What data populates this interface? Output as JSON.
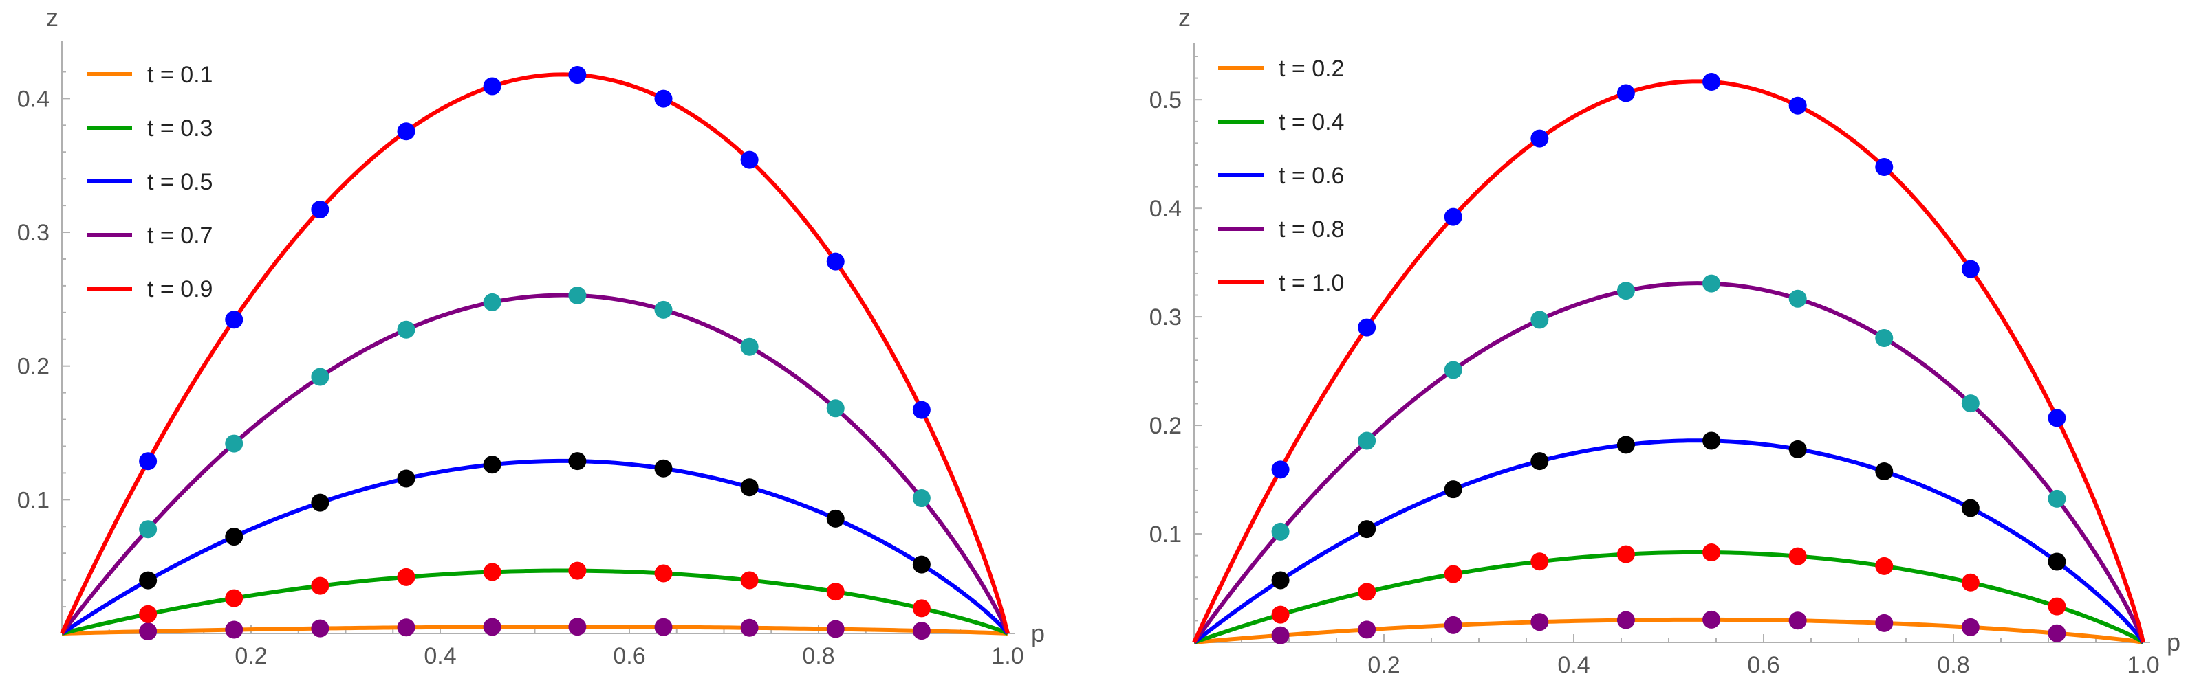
{
  "chart_data": [
    {
      "type": "line",
      "xlabel": "p",
      "ylabel": "z",
      "xlim": [
        0,
        1.0
      ],
      "ylim": [
        0,
        0.43
      ],
      "xticks": [
        0.2,
        0.4,
        0.6,
        0.8,
        1.0
      ],
      "xtick_labels": [
        "0.2",
        "0.4",
        "0.6",
        "0.8",
        "1.0"
      ],
      "yticks": [
        0.1,
        0.2,
        0.3,
        0.4
      ],
      "ytick_labels": [
        "0.1",
        "0.2",
        "0.3",
        "0.4"
      ],
      "legend_position": "top-left",
      "series": [
        {
          "name": "t = 0.1",
          "color": "#ff8000",
          "peak": 0.005,
          "marker_color": "#800080"
        },
        {
          "name": "t = 0.3",
          "color": "#00a000",
          "peak": 0.047,
          "marker_color": "#ff0000"
        },
        {
          "name": "t = 0.5",
          "color": "#0000ff",
          "peak": 0.129,
          "marker_color": "#000000"
        },
        {
          "name": "t = 0.7",
          "color": "#800080",
          "peak": 0.253,
          "marker_color": "#1aa3a3"
        },
        {
          "name": "t = 0.9",
          "color": "#ff0000",
          "peak": 0.418,
          "marker_color": "#0000ff"
        }
      ],
      "marker_x": [
        0.091,
        0.182,
        0.273,
        0.364,
        0.455,
        0.545,
        0.636,
        0.727,
        0.818,
        0.909
      ],
      "peak_x": 0.53
    },
    {
      "type": "line",
      "xlabel": "p",
      "ylabel": "z",
      "xlim": [
        0,
        1.0
      ],
      "ylim": [
        0,
        0.54
      ],
      "xticks": [
        0.2,
        0.4,
        0.6,
        0.8,
        1.0
      ],
      "xtick_labels": [
        "0.2",
        "0.4",
        "0.6",
        "0.8",
        "1.0"
      ],
      "yticks": [
        0.1,
        0.2,
        0.3,
        0.4,
        0.5
      ],
      "ytick_labels": [
        "0.1",
        "0.2",
        "0.3",
        "0.4",
        "0.5"
      ],
      "legend_position": "top-left",
      "series": [
        {
          "name": "t = 0.2",
          "color": "#ff8000",
          "peak": 0.021,
          "marker_color": "#800080"
        },
        {
          "name": "t = 0.4",
          "color": "#00a000",
          "peak": 0.083,
          "marker_color": "#ff0000"
        },
        {
          "name": "t = 0.6",
          "color": "#0000ff",
          "peak": 0.186,
          "marker_color": "#000000"
        },
        {
          "name": "t = 0.8",
          "color": "#800080",
          "peak": 0.331,
          "marker_color": "#1aa3a3"
        },
        {
          "name": "t = 1.0",
          "color": "#ff0000",
          "peak": 0.517,
          "marker_color": "#0000ff"
        }
      ],
      "marker_x": [
        0.091,
        0.182,
        0.273,
        0.364,
        0.455,
        0.545,
        0.636,
        0.727,
        0.818,
        0.909
      ],
      "peak_x": 0.53
    }
  ]
}
